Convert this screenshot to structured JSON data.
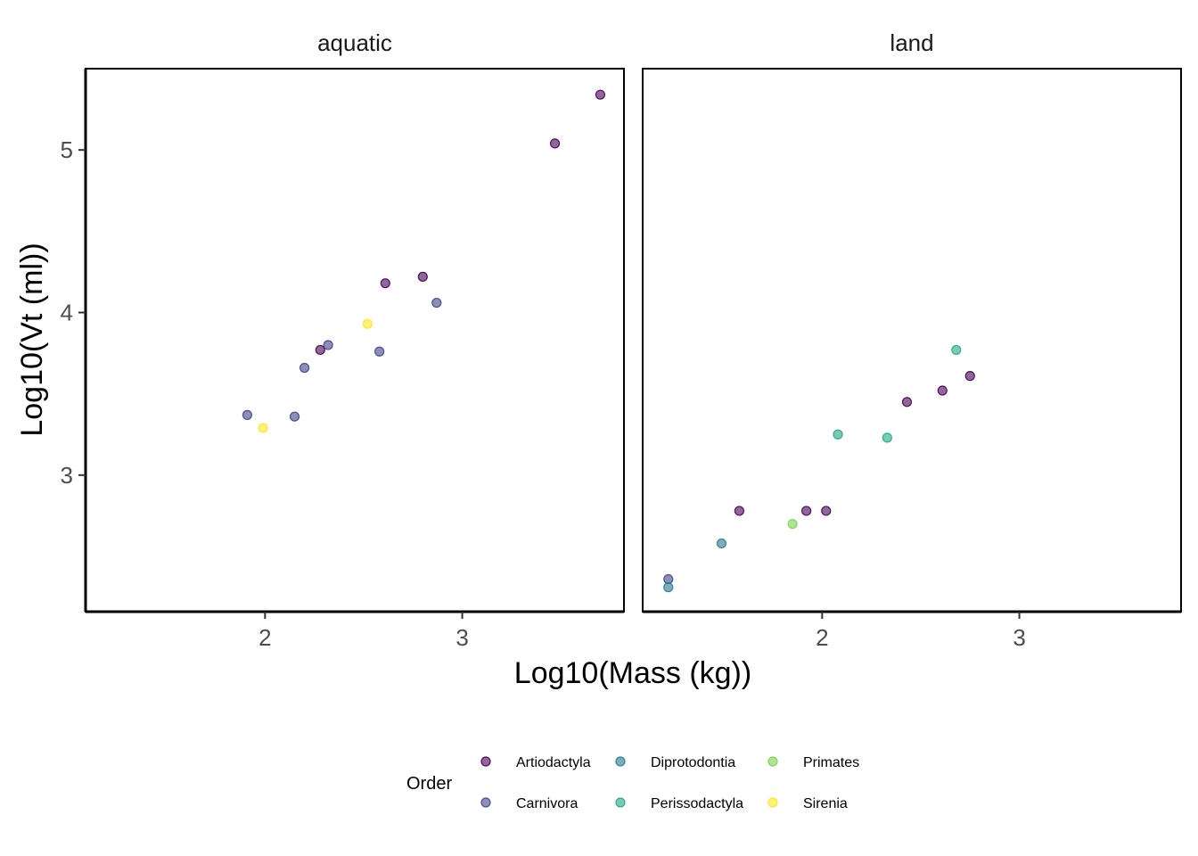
{
  "chart_data": {
    "type": "scatter",
    "xlabel": "Log10(Mass (kg))",
    "ylabel": "Log10(Vt (ml))",
    "xlim": [
      1.09,
      3.82
    ],
    "ylim": [
      2.16,
      5.5
    ],
    "x_ticks": [
      "2",
      "3"
    ],
    "y_ticks": [
      "3",
      "4",
      "5"
    ],
    "grid": false,
    "legend": {
      "title": "Order",
      "position": "bottom",
      "entries": [
        {
          "name": "Artiodactyla",
          "color": "#440154"
        },
        {
          "name": "Carnivora",
          "color": "#414487"
        },
        {
          "name": "Diprotodontia",
          "color": "#2A788E"
        },
        {
          "name": "Perissodactyla",
          "color": "#22A884"
        },
        {
          "name": "Primates",
          "color": "#7AD151"
        },
        {
          "name": "Sirenia",
          "color": "#FDE725"
        }
      ]
    },
    "facets": [
      {
        "label": "aquatic",
        "points": [
          {
            "x": 3.47,
            "y": 5.04,
            "order": "Artiodactyla"
          },
          {
            "x": 3.7,
            "y": 5.34,
            "order": "Artiodactyla"
          },
          {
            "x": 2.61,
            "y": 4.18,
            "order": "Artiodactyla"
          },
          {
            "x": 2.8,
            "y": 4.22,
            "order": "Artiodactyla"
          },
          {
            "x": 2.28,
            "y": 3.77,
            "order": "Artiodactyla"
          },
          {
            "x": 2.87,
            "y": 4.06,
            "order": "Carnivora"
          },
          {
            "x": 2.32,
            "y": 3.8,
            "order": "Carnivora"
          },
          {
            "x": 2.2,
            "y": 3.66,
            "order": "Carnivora"
          },
          {
            "x": 2.58,
            "y": 3.76,
            "order": "Carnivora"
          },
          {
            "x": 1.91,
            "y": 3.37,
            "order": "Carnivora"
          },
          {
            "x": 2.15,
            "y": 3.36,
            "order": "Carnivora"
          },
          {
            "x": 2.52,
            "y": 3.93,
            "order": "Sirenia"
          },
          {
            "x": 1.99,
            "y": 3.29,
            "order": "Sirenia"
          }
        ]
      },
      {
        "label": "land",
        "points": [
          {
            "x": 2.43,
            "y": 3.45,
            "order": "Artiodactyla"
          },
          {
            "x": 2.61,
            "y": 3.52,
            "order": "Artiodactyla"
          },
          {
            "x": 2.75,
            "y": 3.61,
            "order": "Artiodactyla"
          },
          {
            "x": 1.58,
            "y": 2.78,
            "order": "Artiodactyla"
          },
          {
            "x": 1.92,
            "y": 2.78,
            "order": "Artiodactyla"
          },
          {
            "x": 2.02,
            "y": 2.78,
            "order": "Artiodactyla"
          },
          {
            "x": 1.22,
            "y": 2.36,
            "order": "Carnivora"
          },
          {
            "x": 1.49,
            "y": 2.58,
            "order": "Diprotodontia"
          },
          {
            "x": 1.22,
            "y": 2.31,
            "order": "Diprotodontia"
          },
          {
            "x": 2.08,
            "y": 3.25,
            "order": "Perissodactyla"
          },
          {
            "x": 2.33,
            "y": 3.23,
            "order": "Perissodactyla"
          },
          {
            "x": 2.68,
            "y": 3.77,
            "order": "Perissodactyla"
          },
          {
            "x": 1.85,
            "y": 2.7,
            "order": "Primates"
          }
        ]
      }
    ]
  }
}
